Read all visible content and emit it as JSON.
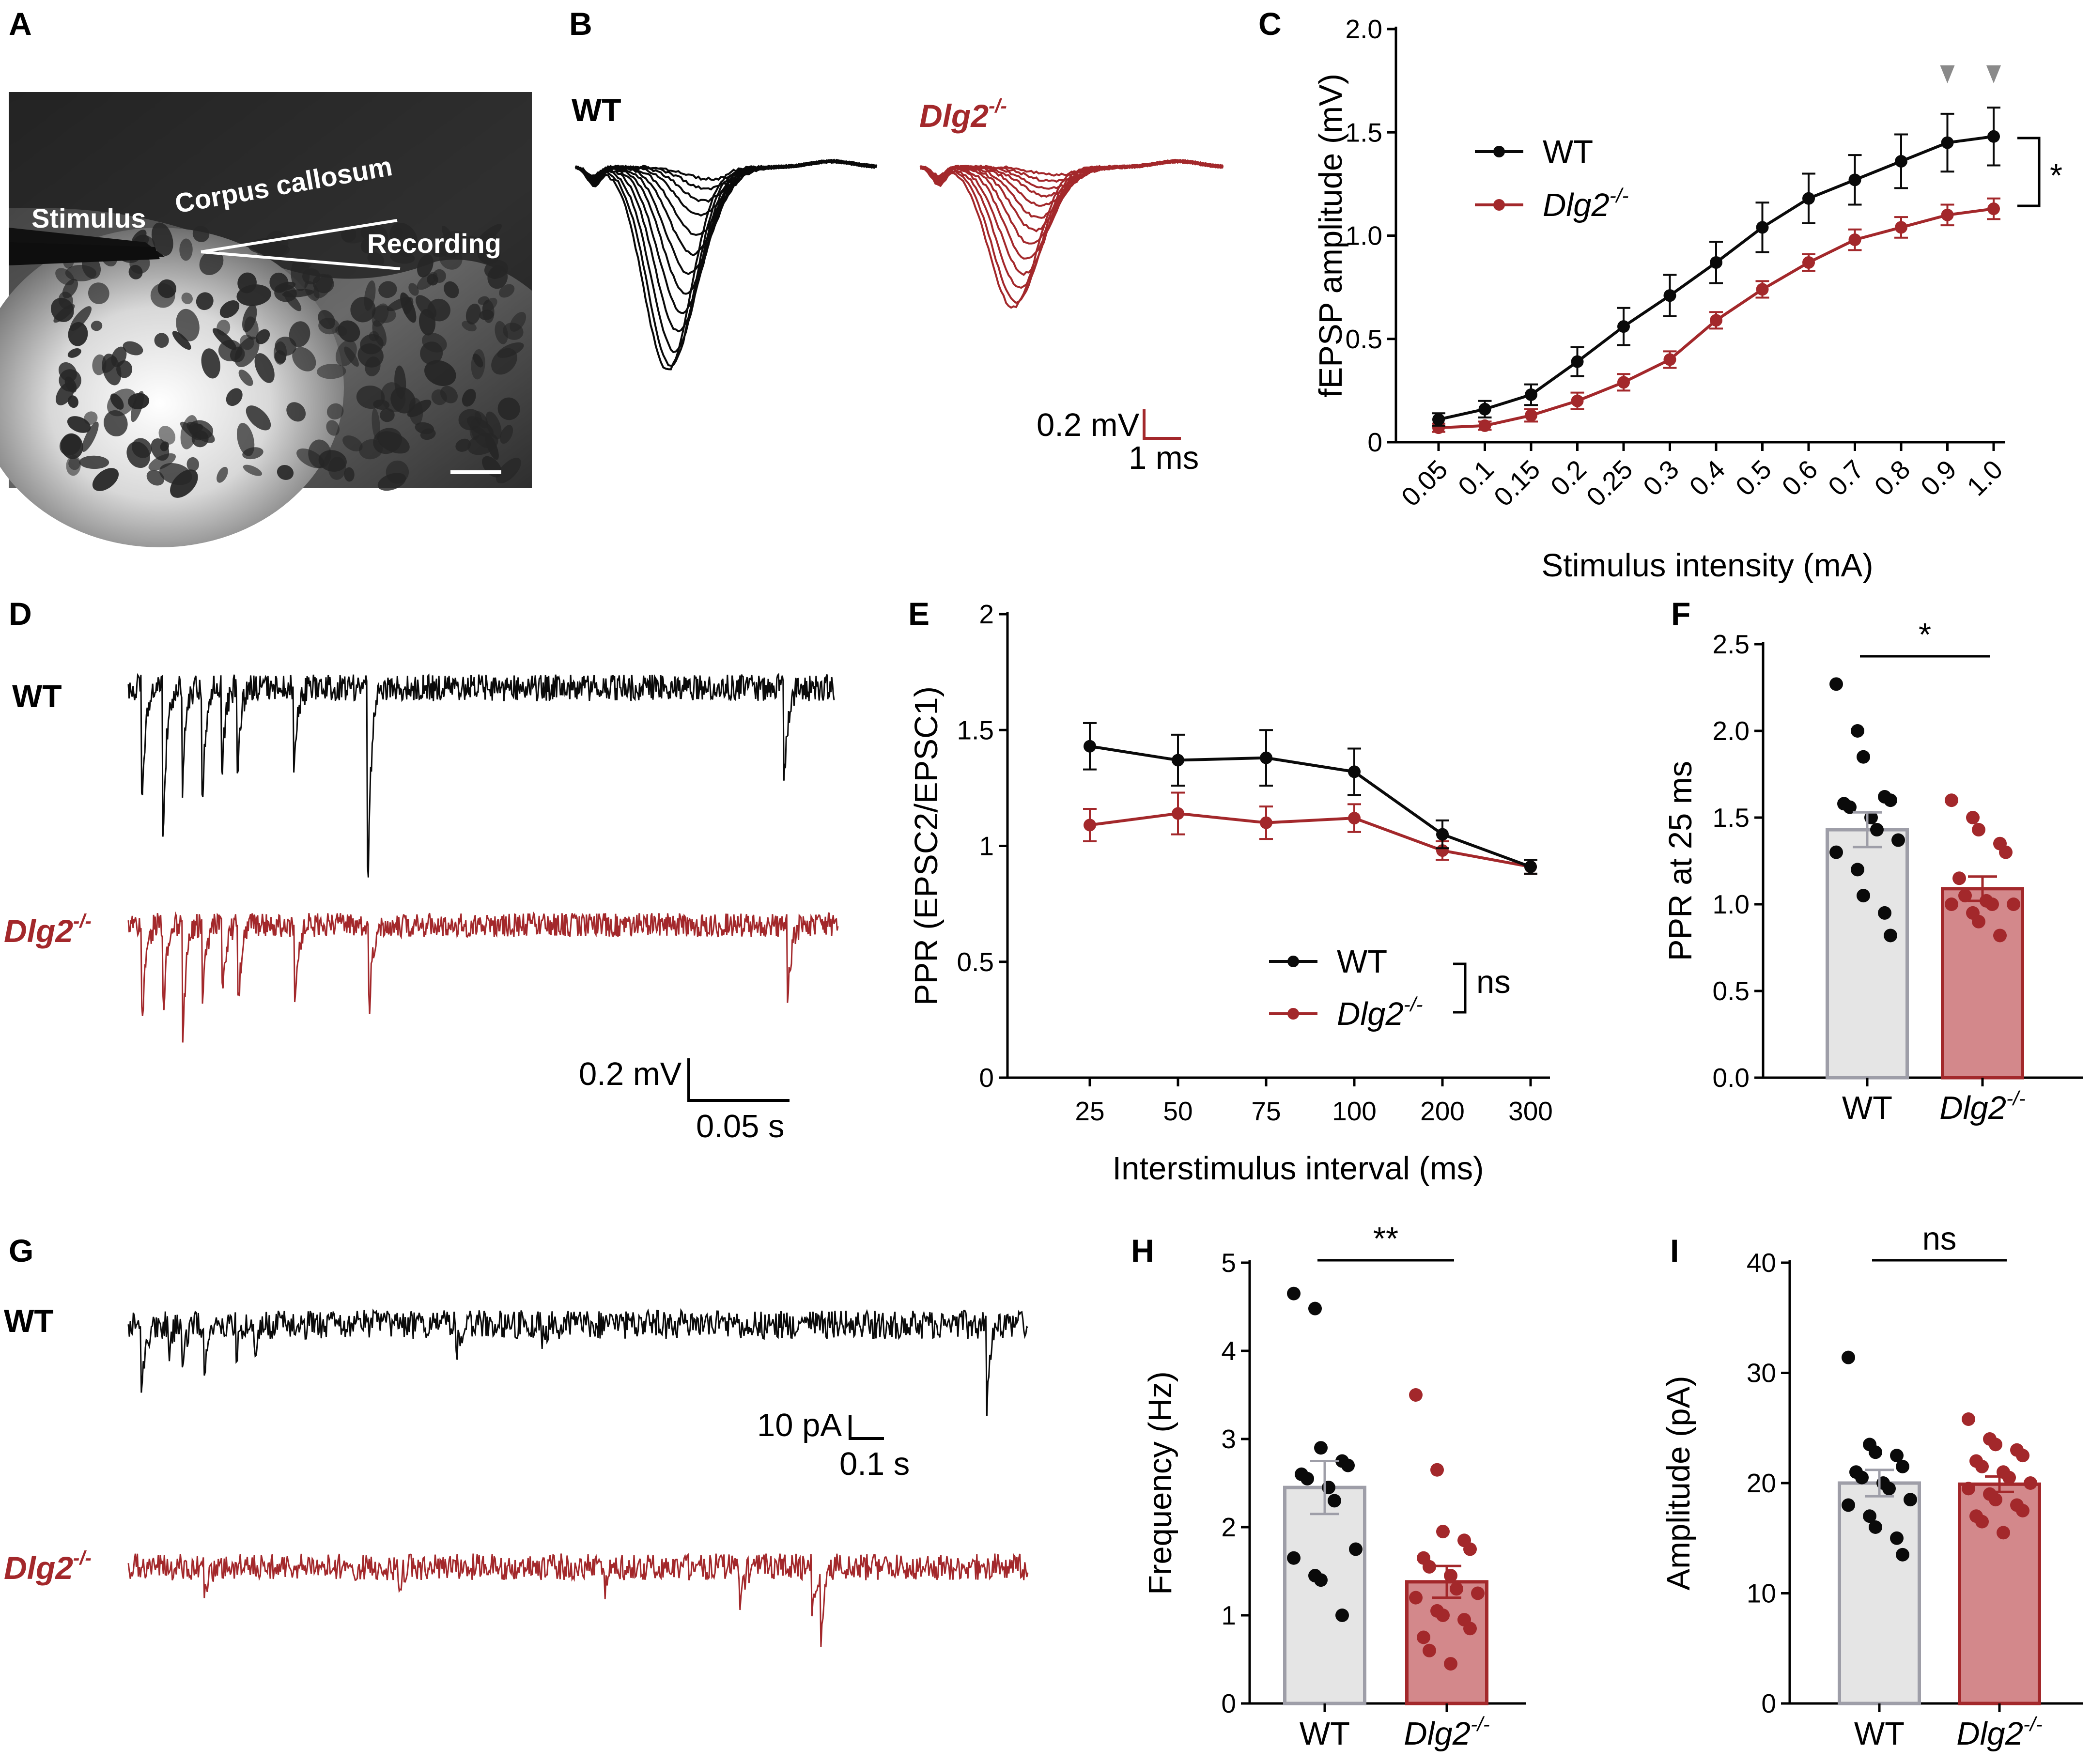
{
  "colors": {
    "wt": "#0a0a0a",
    "ko": "#a3282b",
    "wt_bar": "#e5e5e5",
    "wt_bar_edge": "#9e9ea8",
    "ko_bar": "#d3888b",
    "ko_bar_edge": "#a3282b",
    "arrow": "#8a8a8a"
  },
  "panels": {
    "A": {
      "label": "A",
      "stimulus": "Stimulus",
      "corpus_callosum": "Corpus callosum",
      "recording": "Recording"
    },
    "B": {
      "label": "B",
      "wt": "WT",
      "ko": "Dlg2",
      "ko_sup": "-/-",
      "scale_v": "0.2 mV",
      "scale_t": "1 ms"
    },
    "C": {
      "label": "C",
      "sig": "*"
    },
    "D": {
      "label": "D",
      "wt": "WT",
      "ko": "Dlg2",
      "ko_sup": "-/-",
      "scale_v": "0.2 mV",
      "scale_t": "0.05 s"
    },
    "E": {
      "label": "E",
      "sig": "ns"
    },
    "F": {
      "label": "F",
      "sig": "*"
    },
    "G": {
      "label": "G",
      "wt": "WT",
      "ko": "Dlg2",
      "ko_sup": "-/-",
      "scale_v": "10 pA",
      "scale_t": "0.1 s"
    },
    "H": {
      "label": "H",
      "sig": "**"
    },
    "I": {
      "label": "I",
      "sig": "ns"
    }
  },
  "chart_data": [
    {
      "panel": "C",
      "type": "line",
      "title": "",
      "xlabel": "Stimulus intensity (mA)",
      "ylabel": "fEPSP amplitude (mV)",
      "categories": [
        "0.05",
        "0.1",
        "0.15",
        "0.2",
        "0.25",
        "0.3",
        "0.4",
        "0.5",
        "0.6",
        "0.7",
        "0.8",
        "0.9",
        "1.0"
      ],
      "ylim": [
        0,
        2.0
      ],
      "yticks": [
        "0",
        "0.5",
        "1.0",
        "1.5",
        "2.0"
      ],
      "legend": {
        "position": "top-left",
        "entries": [
          "WT",
          "Dlg2-/-"
        ]
      },
      "significance": "*",
      "arrowheads_at": [
        "0.9",
        "1.0"
      ],
      "series": [
        {
          "name": "WT",
          "values": [
            0.11,
            0.16,
            0.23,
            0.39,
            0.56,
            0.71,
            0.87,
            1.04,
            1.18,
            1.27,
            1.36,
            1.45,
            1.48
          ],
          "errors": [
            0.03,
            0.04,
            0.05,
            0.07,
            0.09,
            0.1,
            0.1,
            0.12,
            0.12,
            0.12,
            0.13,
            0.14,
            0.14
          ]
        },
        {
          "name": "Dlg2-/-",
          "values": [
            0.07,
            0.08,
            0.13,
            0.2,
            0.29,
            0.4,
            0.59,
            0.74,
            0.87,
            0.98,
            1.04,
            1.1,
            1.13
          ],
          "errors": [
            0.02,
            0.02,
            0.03,
            0.04,
            0.04,
            0.04,
            0.04,
            0.04,
            0.04,
            0.05,
            0.05,
            0.05,
            0.05
          ]
        }
      ]
    },
    {
      "panel": "E",
      "type": "line",
      "title": "",
      "xlabel": "Interstimulus interval (ms)",
      "ylabel": "PPR (EPSC2/EPSC1)",
      "categories": [
        "25",
        "50",
        "75",
        "100",
        "200",
        "300"
      ],
      "ylim": [
        0,
        2
      ],
      "yticks": [
        "0",
        "0.5",
        "1",
        "1.5",
        "2"
      ],
      "legend": {
        "position": "bottom-center",
        "entries": [
          "WT",
          "Dlg2-/-"
        ]
      },
      "significance": "ns",
      "series": [
        {
          "name": "WT",
          "values": [
            1.43,
            1.37,
            1.38,
            1.32,
            1.05,
            0.91
          ],
          "errors": [
            0.1,
            0.11,
            0.12,
            0.1,
            0.06,
            0.03
          ]
        },
        {
          "name": "Dlg2-/-",
          "values": [
            1.09,
            1.14,
            1.1,
            1.12,
            0.98,
            0.91
          ],
          "errors": [
            0.07,
            0.09,
            0.07,
            0.06,
            0.04,
            0.03
          ]
        }
      ]
    },
    {
      "panel": "F",
      "type": "bar",
      "title": "",
      "xlabel": "",
      "ylabel": "PPR at 25 ms",
      "categories": [
        "WT",
        "Dlg2-/-"
      ],
      "ylim": [
        0,
        2.5
      ],
      "yticks": [
        "0.0",
        "0.5",
        "1.0",
        "1.5",
        "2.0",
        "2.5"
      ],
      "significance": "*",
      "values": [
        1.43,
        1.09
      ],
      "errors": [
        0.1,
        0.07
      ],
      "points": [
        [
          2.27,
          2.0,
          1.85,
          1.62,
          1.6,
          1.58,
          1.56,
          1.5,
          1.43,
          1.37,
          1.3,
          1.2,
          1.05,
          0.95,
          0.82
        ],
        [
          1.6,
          1.5,
          1.43,
          1.35,
          1.3,
          1.15,
          1.05,
          1.02,
          1.0,
          1.0,
          1.0,
          0.95,
          0.9,
          0.82
        ]
      ]
    },
    {
      "panel": "H",
      "type": "bar",
      "title": "",
      "xlabel": "",
      "ylabel": "Frequency (Hz)",
      "categories": [
        "WT",
        "Dlg2-/-"
      ],
      "ylim": [
        0,
        5
      ],
      "yticks": [
        "0",
        "1",
        "2",
        "3",
        "4",
        "5"
      ],
      "significance": "**",
      "values": [
        2.45,
        1.38
      ],
      "errors": [
        0.3,
        0.18
      ],
      "points": [
        [
          4.65,
          4.48,
          2.9,
          2.75,
          2.7,
          2.6,
          2.55,
          2.45,
          2.3,
          1.75,
          1.65,
          1.45,
          1.4,
          1.0
        ],
        [
          3.5,
          2.65,
          1.95,
          1.85,
          1.75,
          1.65,
          1.55,
          1.45,
          1.3,
          1.25,
          1.2,
          1.05,
          1.0,
          0.95,
          0.85,
          0.75,
          0.6,
          0.45
        ]
      ]
    },
    {
      "panel": "I",
      "type": "bar",
      "title": "",
      "xlabel": "",
      "ylabel": "Amplitude (pA)",
      "categories": [
        "WT",
        "Dlg2-/-"
      ],
      "ylim": [
        0,
        40
      ],
      "yticks": [
        "0",
        "10",
        "20",
        "30",
        "40"
      ],
      "significance": "ns",
      "values": [
        20.0,
        19.9
      ],
      "errors": [
        1.2,
        0.7
      ],
      "points": [
        [
          31.4,
          23.5,
          22.8,
          22.5,
          21.5,
          21.0,
          20.5,
          20.0,
          19.5,
          18.5,
          18.0,
          17.0,
          16.0,
          15.0,
          13.5
        ],
        [
          25.8,
          24.0,
          23.5,
          23.0,
          22.5,
          22.0,
          21.5,
          21.0,
          20.5,
          20.0,
          19.5,
          19.0,
          18.5,
          18.0,
          17.5,
          17.0,
          16.5,
          15.5
        ]
      ]
    }
  ]
}
